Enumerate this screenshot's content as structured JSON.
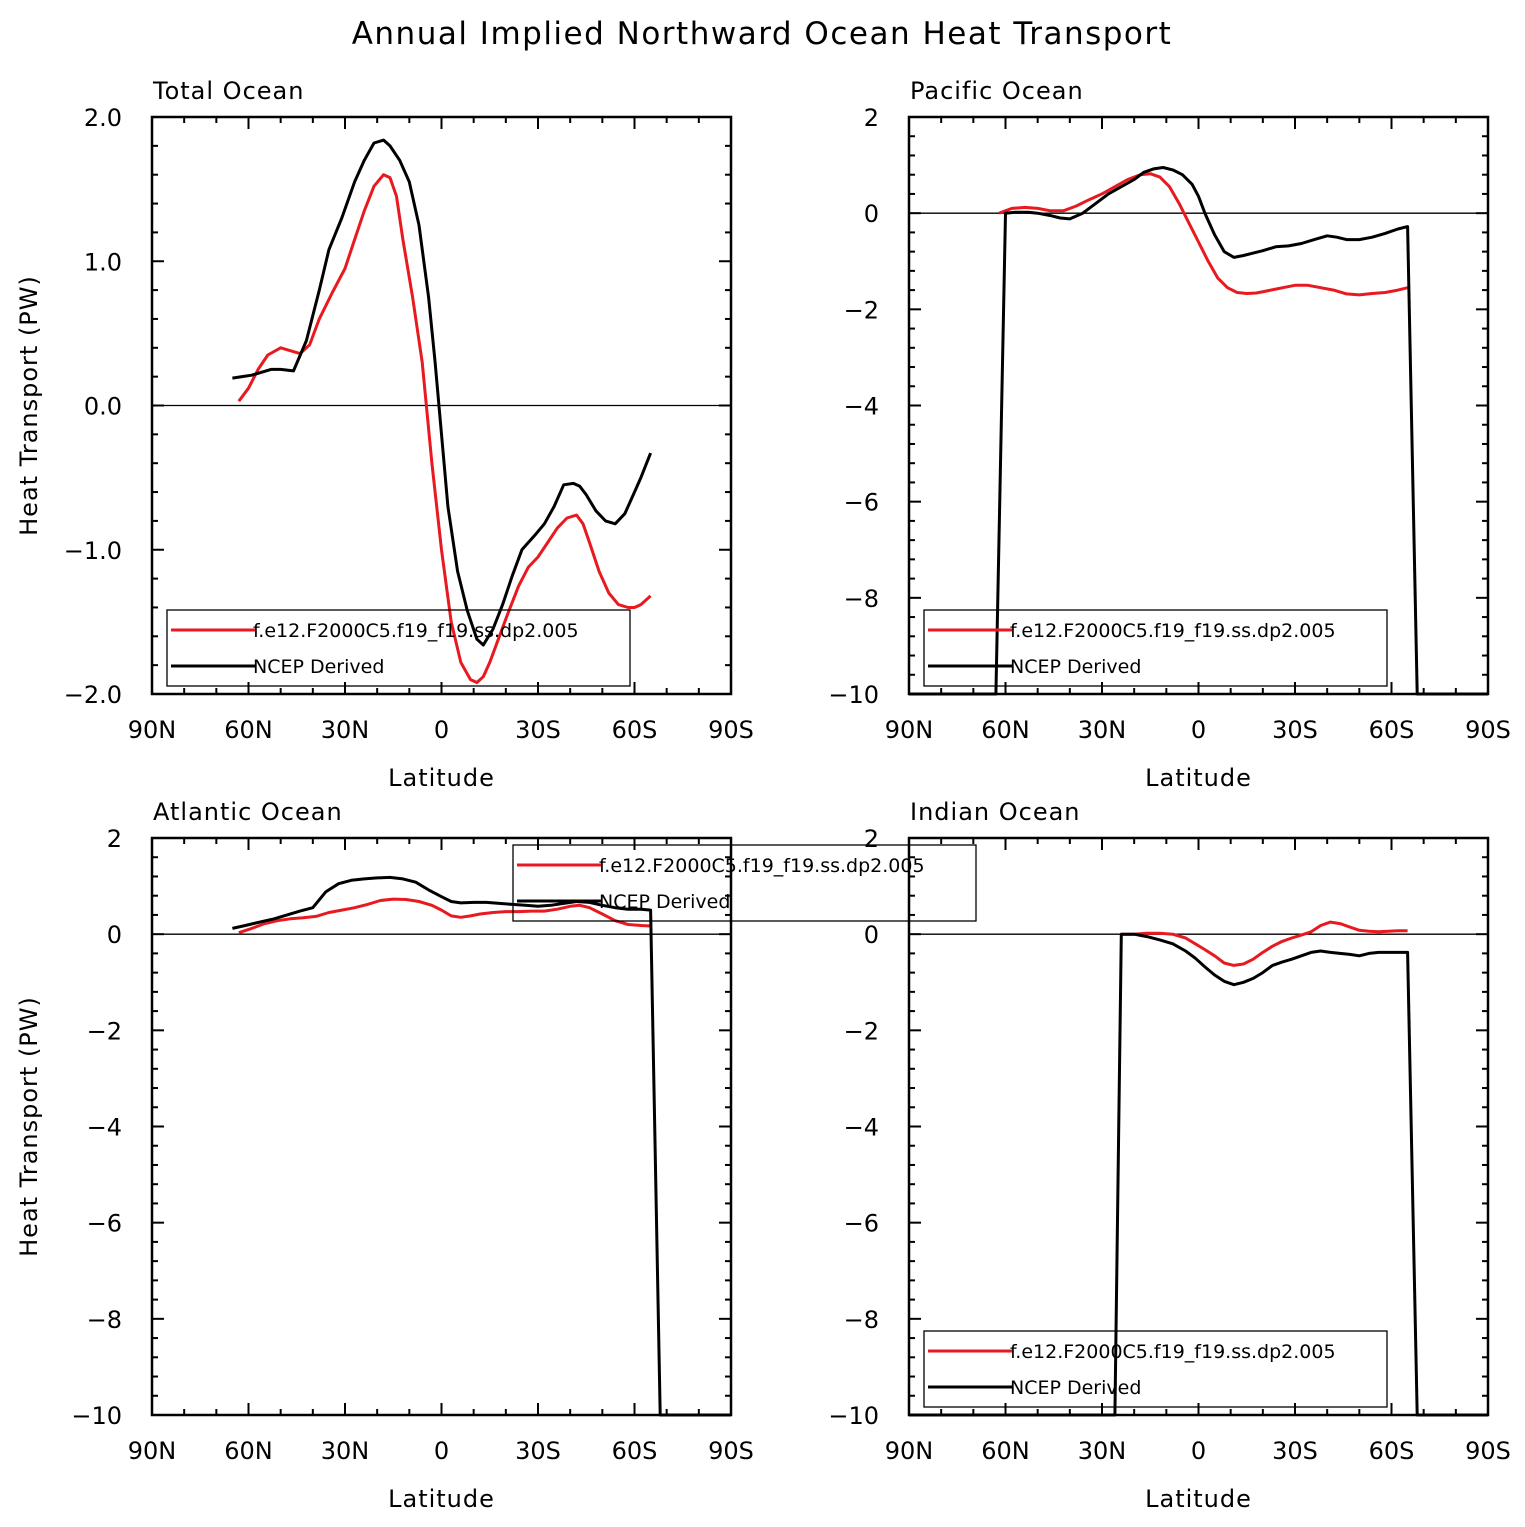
{
  "figure_title": "Annual Implied Northward Ocean Heat Transport",
  "chart_data": [
    {
      "type": "line",
      "title": "Total Ocean",
      "xlabel": "Latitude",
      "ylabel": "Heat Transport (PW)",
      "xlim": [
        90,
        -90
      ],
      "ylim": [
        -2,
        2
      ],
      "xticks": [
        90,
        60,
        30,
        0,
        -30,
        -60,
        -90
      ],
      "xtick_labels": [
        "90N",
        "60N",
        "30N",
        "0",
        "30S",
        "60S",
        "90S"
      ],
      "yticks": [
        -2,
        -1,
        0,
        1,
        2
      ],
      "ytick_labels": [
        "−2.0",
        "−1.0",
        "0.0",
        "1.0",
        "2.0"
      ],
      "legend": {
        "placement": "bottom-left",
        "entries": [
          "f.e12.F2000C5.f19_f19.ss.dp2.005",
          "NCEP Derived"
        ]
      },
      "series": [
        {
          "name": "f.e12.F2000C5.f19_f19.ss.dp2.005",
          "color": "#e8191f",
          "x": [
            63,
            60,
            57,
            54,
            50,
            47,
            44,
            41,
            38,
            34,
            30,
            27,
            24,
            21,
            18,
            16,
            14,
            12,
            9,
            6,
            3,
            0,
            -3,
            -6,
            -9,
            -11,
            -13,
            -15,
            -18,
            -21,
            -24,
            -27,
            -30,
            -33,
            -36,
            -39,
            -42,
            -44,
            -46,
            -49,
            -52,
            -55,
            -58,
            -60,
            -62,
            -65
          ],
          "y": [
            0.03,
            0.12,
            0.25,
            0.35,
            0.4,
            0.38,
            0.36,
            0.42,
            0.6,
            0.78,
            0.95,
            1.15,
            1.35,
            1.52,
            1.6,
            1.58,
            1.45,
            1.15,
            0.75,
            0.3,
            -0.4,
            -1.0,
            -1.5,
            -1.78,
            -1.9,
            -1.92,
            -1.88,
            -1.78,
            -1.6,
            -1.42,
            -1.25,
            -1.12,
            -1.05,
            -0.95,
            -0.85,
            -0.78,
            -0.76,
            -0.82,
            -0.95,
            -1.15,
            -1.3,
            -1.38,
            -1.4,
            -1.4,
            -1.38,
            -1.32
          ]
        },
        {
          "name": "NCEP Derived",
          "color": "#000000",
          "x": [
            65,
            62,
            59,
            56,
            53,
            50,
            46,
            42,
            38,
            35,
            31,
            27,
            24,
            21,
            18,
            16,
            13,
            10,
            7,
            4,
            2,
            0,
            -2,
            -5,
            -8,
            -11,
            -13,
            -16,
            -19,
            -22,
            -25,
            -29,
            -32,
            -35,
            -38,
            -41,
            -43,
            -45,
            -48,
            -51,
            -54,
            -57,
            -59,
            -62,
            -65
          ],
          "y": [
            0.19,
            0.2,
            0.21,
            0.23,
            0.25,
            0.25,
            0.24,
            0.45,
            0.8,
            1.08,
            1.3,
            1.55,
            1.7,
            1.82,
            1.84,
            1.8,
            1.7,
            1.55,
            1.25,
            0.75,
            0.3,
            -0.2,
            -0.7,
            -1.15,
            -1.42,
            -1.62,
            -1.66,
            -1.55,
            -1.38,
            -1.18,
            -1.0,
            -0.9,
            -0.82,
            -0.7,
            -0.55,
            -0.54,
            -0.56,
            -0.62,
            -0.73,
            -0.8,
            -0.82,
            -0.75,
            -0.65,
            -0.5,
            -0.33
          ]
        }
      ]
    },
    {
      "type": "line",
      "title": "Pacific Ocean",
      "xlabel": "Latitude",
      "ylabel": "",
      "xlim": [
        90,
        -90
      ],
      "ylim": [
        -10,
        2
      ],
      "xticks": [
        90,
        60,
        30,
        0,
        -30,
        -60,
        -90
      ],
      "xtick_labels": [
        "90N",
        "60N",
        "30N",
        "0",
        "30S",
        "60S",
        "90S"
      ],
      "yticks": [
        -10,
        -8,
        -6,
        -4,
        -2,
        0,
        2
      ],
      "ytick_labels": [
        "−10",
        "−8",
        "−6",
        "−4",
        "−2",
        "0",
        "2"
      ],
      "legend": {
        "placement": "bottom-left",
        "entries": [
          "f.e12.F2000C5.f19_f19.ss.dp2.005",
          "NCEP Derived"
        ]
      },
      "series": [
        {
          "name": "f.e12.F2000C5.f19_f19.ss.dp2.005",
          "color": "#e8191f",
          "x": [
            62,
            58,
            54,
            50,
            46,
            42,
            38,
            34,
            30,
            26,
            22,
            18,
            15,
            12,
            9,
            6,
            3,
            0,
            -3,
            -6,
            -9,
            -12,
            -15,
            -18,
            -21,
            -24,
            -27,
            -30,
            -34,
            -38,
            -42,
            -46,
            -50,
            -54,
            -58,
            -62,
            -65
          ],
          "y": [
            0.0,
            0.1,
            0.12,
            0.1,
            0.05,
            0.05,
            0.15,
            0.28,
            0.4,
            0.55,
            0.7,
            0.8,
            0.82,
            0.75,
            0.55,
            0.2,
            -0.2,
            -0.6,
            -1.0,
            -1.35,
            -1.55,
            -1.65,
            -1.67,
            -1.66,
            -1.62,
            -1.58,
            -1.54,
            -1.5,
            -1.5,
            -1.55,
            -1.6,
            -1.68,
            -1.7,
            -1.67,
            -1.65,
            -1.6,
            -1.55
          ]
        },
        {
          "name": "NCEP Derived",
          "color": "#000000",
          "x": [
            90,
            63,
            60,
            57,
            53,
            50,
            46,
            43,
            40,
            36,
            32,
            28,
            24,
            20,
            17,
            14,
            11,
            8,
            5,
            2,
            0,
            -2,
            -5,
            -8,
            -11,
            -14,
            -17,
            -20,
            -24,
            -28,
            -32,
            -36,
            -40,
            -43,
            -46,
            -50,
            -54,
            -58,
            -62,
            -65,
            -68,
            -90
          ],
          "y": [
            -10,
            -10,
            0.0,
            0.02,
            0.02,
            0.0,
            -0.05,
            -0.1,
            -0.12,
            0.0,
            0.2,
            0.4,
            0.55,
            0.7,
            0.85,
            0.92,
            0.95,
            0.9,
            0.8,
            0.6,
            0.35,
            0.0,
            -0.45,
            -0.8,
            -0.92,
            -0.88,
            -0.83,
            -0.78,
            -0.7,
            -0.68,
            -0.63,
            -0.55,
            -0.47,
            -0.5,
            -0.55,
            -0.55,
            -0.5,
            -0.42,
            -0.33,
            -0.28,
            -10,
            -10
          ]
        }
      ]
    },
    {
      "type": "line",
      "title": "Atlantic Ocean",
      "xlabel": "Latitude",
      "ylabel": "Heat Transport (PW)",
      "xlim": [
        90,
        -90
      ],
      "ylim": [
        -10,
        2
      ],
      "xticks": [
        90,
        60,
        30,
        0,
        -30,
        -60,
        -90
      ],
      "xtick_labels": [
        "90N",
        "60N",
        "30N",
        "0",
        "30S",
        "60S",
        "90S"
      ],
      "yticks": [
        -10,
        -8,
        -6,
        -4,
        -2,
        0,
        2
      ],
      "ytick_labels": [
        "−10",
        "−8",
        "−6",
        "−4",
        "−2",
        "0",
        "2"
      ],
      "legend": {
        "placement": "top-center",
        "entries": [
          "f.e12.F2000C5.f19_f19.ss.dp2.005",
          "NCEP Derived"
        ]
      },
      "series": [
        {
          "name": "f.e12.F2000C5.f19_f19.ss.dp2.005",
          "color": "#e8191f",
          "x": [
            63,
            59,
            55,
            51,
            47,
            43,
            39,
            35,
            31,
            27,
            23,
            19,
            15,
            11,
            7,
            3,
            0,
            -3,
            -6,
            -9,
            -12,
            -16,
            -20,
            -24,
            -28,
            -32,
            -36,
            -40,
            -43,
            -46,
            -50,
            -54,
            -58,
            -62,
            -65
          ],
          "y": [
            0.03,
            0.12,
            0.22,
            0.28,
            0.32,
            0.34,
            0.37,
            0.45,
            0.5,
            0.55,
            0.62,
            0.7,
            0.73,
            0.72,
            0.68,
            0.6,
            0.5,
            0.38,
            0.35,
            0.38,
            0.42,
            0.45,
            0.47,
            0.47,
            0.48,
            0.48,
            0.52,
            0.58,
            0.6,
            0.55,
            0.42,
            0.28,
            0.2,
            0.18,
            0.17
          ]
        },
        {
          "name": "NCEP Derived",
          "color": "#000000",
          "x": [
            65,
            61,
            56,
            52,
            48,
            44,
            40,
            36,
            32,
            28,
            24,
            20,
            16,
            12,
            8,
            4,
            0,
            -3,
            -6,
            -10,
            -14,
            -18,
            -22,
            -26,
            -30,
            -34,
            -38,
            -42,
            -46,
            -50,
            -54,
            -58,
            -62,
            -65,
            -68,
            -90
          ],
          "y": [
            0.12,
            0.18,
            0.26,
            0.32,
            0.4,
            0.48,
            0.55,
            0.88,
            1.05,
            1.12,
            1.15,
            1.17,
            1.18,
            1.15,
            1.08,
            0.92,
            0.78,
            0.68,
            0.65,
            0.66,
            0.66,
            0.64,
            0.62,
            0.6,
            0.58,
            0.6,
            0.64,
            0.68,
            0.66,
            0.6,
            0.55,
            0.52,
            0.52,
            0.5,
            -10,
            -10
          ]
        }
      ]
    },
    {
      "type": "line",
      "title": "Indian Ocean",
      "xlabel": "Latitude",
      "ylabel": "",
      "xlim": [
        90,
        -90
      ],
      "ylim": [
        -10,
        2
      ],
      "xticks": [
        90,
        60,
        30,
        0,
        -30,
        -60,
        -90
      ],
      "xtick_labels": [
        "90N",
        "60N",
        "30N",
        "0",
        "30S",
        "60S",
        "90S"
      ],
      "yticks": [
        -10,
        -8,
        -6,
        -4,
        -2,
        0,
        2
      ],
      "ytick_labels": [
        "−10",
        "−8",
        "−6",
        "−4",
        "−2",
        "0",
        "2"
      ],
      "legend": {
        "placement": "bottom-left",
        "entries": [
          "f.e12.F2000C5.f19_f19.ss.dp2.005",
          "NCEP Derived"
        ]
      },
      "series": [
        {
          "name": "f.e12.F2000C5.f19_f19.ss.dp2.005",
          "color": "#e8191f",
          "x": [
            24,
            20,
            16,
            12,
            8,
            4,
            1,
            -2,
            -5,
            -8,
            -11,
            -14,
            -17,
            -20,
            -23,
            -26,
            -29,
            -32,
            -35,
            -38,
            -41,
            -44,
            -47,
            -50,
            -53,
            -56,
            -59,
            -62,
            -65
          ],
          "y": [
            0.0,
            0.0,
            0.02,
            0.02,
            0.0,
            -0.08,
            -0.2,
            -0.32,
            -0.45,
            -0.6,
            -0.65,
            -0.62,
            -0.52,
            -0.38,
            -0.25,
            -0.15,
            -0.08,
            -0.02,
            0.05,
            0.18,
            0.25,
            0.22,
            0.15,
            0.08,
            0.06,
            0.05,
            0.06,
            0.07,
            0.07
          ]
        },
        {
          "name": "NCEP Derived",
          "color": "#000000",
          "x": [
            90,
            26,
            24,
            20,
            16,
            12,
            8,
            4,
            1,
            -2,
            -5,
            -8,
            -11,
            -14,
            -17,
            -20,
            -23,
            -26,
            -29,
            -32,
            -35,
            -38,
            -41,
            -44,
            -47,
            -50,
            -53,
            -56,
            -59,
            -62,
            -65,
            -68,
            -90
          ],
          "y": [
            -10,
            -10,
            0.0,
            0.0,
            -0.05,
            -0.12,
            -0.2,
            -0.35,
            -0.5,
            -0.68,
            -0.85,
            -0.98,
            -1.05,
            -1.0,
            -0.92,
            -0.8,
            -0.65,
            -0.58,
            -0.52,
            -0.45,
            -0.38,
            -0.35,
            -0.38,
            -0.4,
            -0.42,
            -0.45,
            -0.4,
            -0.38,
            -0.38,
            -0.38,
            -0.38,
            -10,
            -10
          ]
        }
      ]
    }
  ]
}
